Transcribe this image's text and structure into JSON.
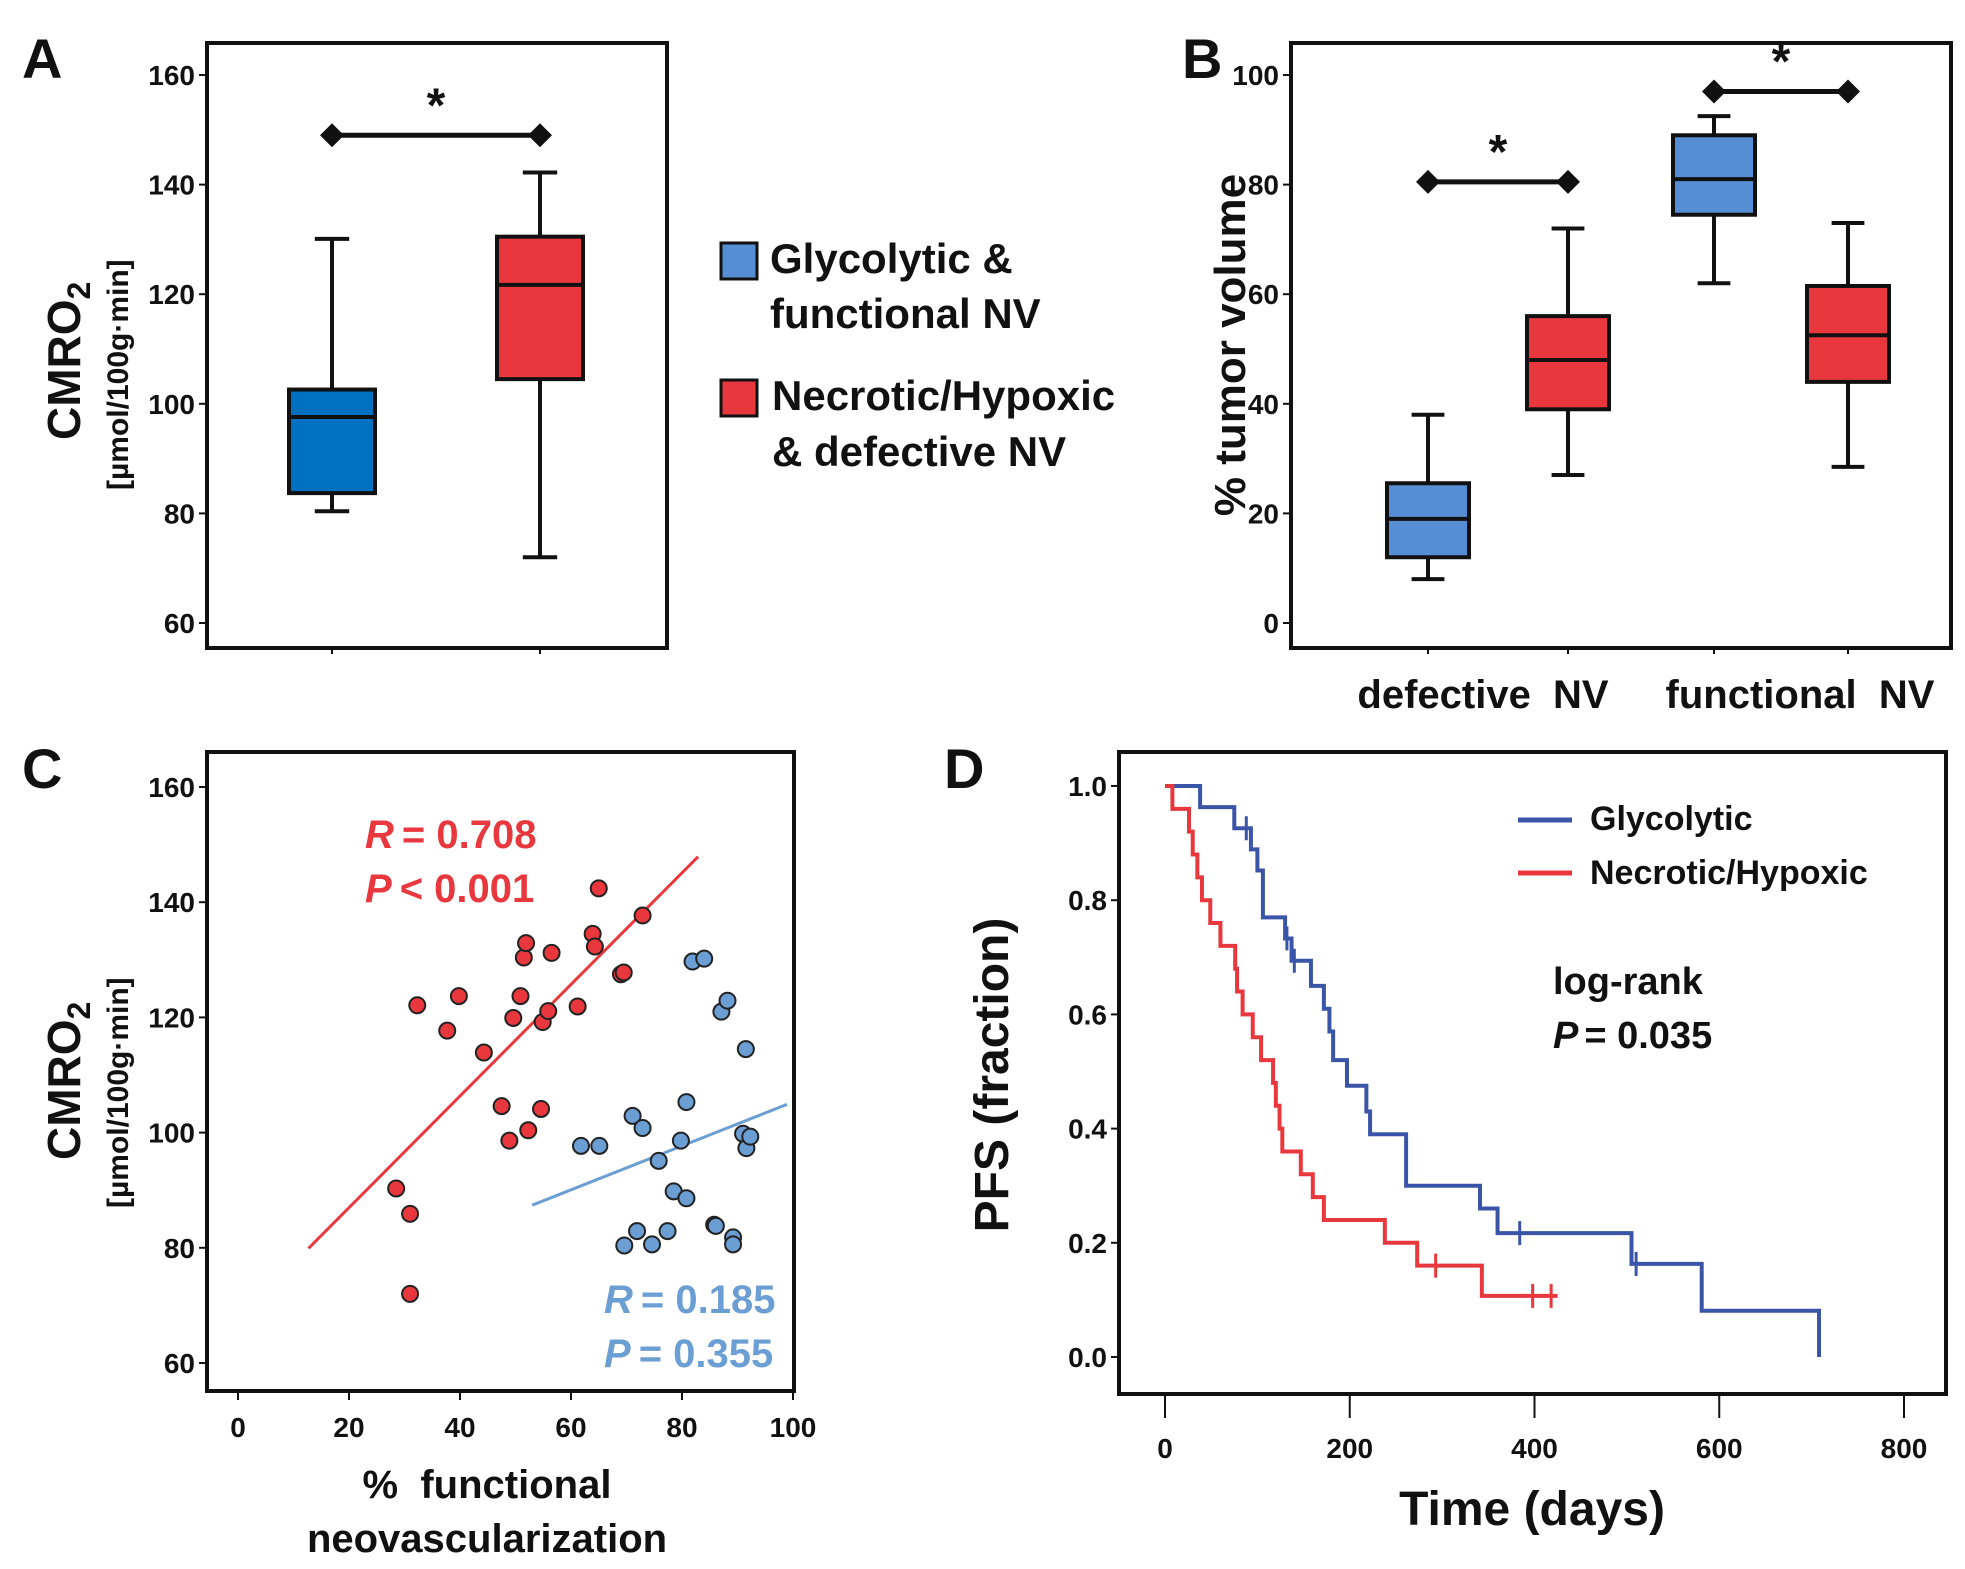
{
  "chart_data": [
    {
      "panel": "A",
      "type": "box",
      "ylabel": "CMRO2",
      "ylabel_main": "CMRO",
      "ylabel_sub": "2",
      "ylabel_units": "[µmol/100g·min]",
      "ylim": [
        55,
        166
      ],
      "yticks": [
        60,
        80,
        100,
        120,
        140,
        160
      ],
      "categories": [
        "Glycolytic & functional NV",
        "Necrotic/Hypoxic & defective NV"
      ],
      "boxes": [
        {
          "group": "Glycolytic & functional NV",
          "color": "#0070C0",
          "min": 80.4,
          "q1": 83.7,
          "median": 97.6,
          "q3": 102.6,
          "max": 130.1
        },
        {
          "group": "Necrotic/Hypoxic & defective NV",
          "color": "#E8383D",
          "min": 72.0,
          "q1": 104.5,
          "median": 121.7,
          "q3": 130.5,
          "max": 142.2
        }
      ],
      "significance": [
        {
          "between": [
            0,
            1
          ],
          "y": 149,
          "label": "*"
        }
      ]
    },
    {
      "panel": "B",
      "type": "box",
      "ylabel": "% tumor volume",
      "ylim": [
        -5,
        106
      ],
      "yticks": [
        0,
        20,
        40,
        60,
        80,
        100
      ],
      "categories": [
        "defective  NV",
        "functional  NV"
      ],
      "boxes": [
        {
          "category": "defective  NV",
          "group": "Glycolytic & functional NV",
          "color": "#558ED5",
          "min": 8,
          "q1": 12,
          "median": 19,
          "q3": 25.5,
          "max": 38
        },
        {
          "category": "defective  NV",
          "group": "Necrotic/Hypoxic & defective NV",
          "color": "#E8383D",
          "min": 27,
          "q1": 39,
          "median": 48,
          "q3": 56,
          "max": 72
        },
        {
          "category": "functional  NV",
          "group": "Glycolytic & functional NV",
          "color": "#558ED5",
          "min": 62,
          "q1": 74.5,
          "median": 81,
          "q3": 89,
          "max": 92.5
        },
        {
          "category": "functional  NV",
          "group": "Necrotic/Hypoxic & defective NV",
          "color": "#E8383D",
          "min": 28.5,
          "q1": 44,
          "median": 52.5,
          "q3": 61.5,
          "max": 73
        }
      ],
      "significance": [
        {
          "between": [
            0,
            1
          ],
          "y": 80.5,
          "label": "*"
        },
        {
          "between": [
            2,
            3
          ],
          "y": 97,
          "label": "*"
        }
      ]
    },
    {
      "panel": "C",
      "type": "scatter",
      "xlabel_line1": "%  functional",
      "xlabel_line2": "neovascularization",
      "ylabel_main": "CMRO",
      "ylabel_sub": "2",
      "ylabel_units": "[µmol/100g·min]",
      "xlim": [
        -6,
        104
      ],
      "ylim": [
        54,
        166
      ],
      "xticks": [
        0,
        20,
        40,
        60,
        80,
        100
      ],
      "yticks": [
        60,
        80,
        100,
        120,
        140,
        160
      ],
      "series": [
        {
          "name": "Necrotic/Hypoxic",
          "color": "#E8383D",
          "stat_r": "= 0.708",
          "stat_p": "< 0.001",
          "fit": {
            "x0": 12.7,
            "y0": 79.9,
            "x1": 82.9,
            "y1": 147.9
          },
          "points": [
            [
              28.5,
              90.3
            ],
            [
              31,
              85.9
            ],
            [
              31,
              72
            ],
            [
              32.3,
              122.1
            ],
            [
              37.7,
              117.7
            ],
            [
              39.8,
              123.7
            ],
            [
              44.3,
              113.9
            ],
            [
              47.5,
              104.6
            ],
            [
              48.9,
              98.6
            ],
            [
              49.6,
              119.9
            ],
            [
              50.9,
              123.7
            ],
            [
              51.5,
              130.4
            ],
            [
              51.9,
              132.9
            ],
            [
              52.3,
              100.4
            ],
            [
              54.6,
              104.1
            ],
            [
              54.9,
              119.2
            ],
            [
              55.9,
              121.1
            ],
            [
              56.5,
              131.2
            ],
            [
              61.2,
              121.9
            ],
            [
              63.9,
              134.5
            ],
            [
              64.3,
              132.3
            ],
            [
              65,
              142.4
            ],
            [
              69,
              127.5
            ],
            [
              69.5,
              127.8
            ],
            [
              72.9,
              137.7
            ]
          ]
        },
        {
          "name": "Glycolytic",
          "color": "#6B9FD4",
          "stat_r": "= 0.185",
          "stat_p": "= 0.355",
          "fit": {
            "x0": 53,
            "y0": 87.4,
            "x1": 98.9,
            "y1": 104.9
          },
          "points": [
            [
              61.8,
              97.7
            ],
            [
              65.1,
              97.7
            ],
            [
              69.6,
              80.4
            ],
            [
              71.1,
              102.9
            ],
            [
              71.9,
              82.9
            ],
            [
              72.9,
              100.8
            ],
            [
              74.6,
              80.6
            ],
            [
              75.8,
              95.1
            ],
            [
              77.4,
              82.9
            ],
            [
              78.5,
              89.8
            ],
            [
              79.8,
              98.6
            ],
            [
              80.8,
              105.3
            ],
            [
              80.8,
              88.6
            ],
            [
              81.9,
              129.7
            ],
            [
              84,
              130.2
            ],
            [
              85.8,
              84
            ],
            [
              86.1,
              83.8
            ],
            [
              87.1,
              121
            ],
            [
              88.2,
              122.9
            ],
            [
              89.2,
              81.8
            ],
            [
              89.2,
              80.6
            ],
            [
              91,
              99.8
            ],
            [
              91.5,
              114.5
            ],
            [
              91.6,
              97.3
            ],
            [
              92.3,
              99.3
            ]
          ]
        }
      ]
    },
    {
      "panel": "D",
      "type": "line",
      "subtype": "kaplan-meier",
      "xlabel": "Time (days)",
      "ylabel": "PFS (fraction)",
      "xlim": [
        -22,
        830
      ],
      "ylim": [
        -0.06,
        1.06
      ],
      "xticks": [
        0,
        200,
        400,
        600,
        800
      ],
      "yticks": [
        "0.0",
        "0.2",
        "0.4",
        "0.6",
        "0.8",
        "1.0"
      ],
      "legend_position": "top-right",
      "annotation_line1": "log-rank",
      "annotation_p": "= 0.035",
      "series": [
        {
          "name": "Glycolytic",
          "color": "#3A55A8",
          "steps": [
            [
              0,
              1.0
            ],
            [
              38,
              0.963
            ],
            [
              75,
              0.926
            ],
            [
              93,
              0.889
            ],
            [
              100,
              0.852
            ],
            [
              106,
              0.77
            ],
            [
              130,
              0.733
            ],
            [
              137,
              0.694
            ],
            [
              158,
              0.65
            ],
            [
              172,
              0.61
            ],
            [
              178,
              0.57
            ],
            [
              182,
              0.52
            ],
            [
              197,
              0.475
            ],
            [
              218,
              0.43
            ],
            [
              222,
              0.39
            ],
            [
              261,
              0.3
            ],
            [
              341,
              0.26
            ],
            [
              360,
              0.217
            ],
            [
              505,
              0.163
            ],
            [
              581,
              0.081
            ],
            [
              708,
              0.0
            ]
          ],
          "end": 708,
          "censored": [
            [
              88,
              0.926
            ],
            [
              132,
              0.733
            ],
            [
              140,
              0.694
            ],
            [
              384,
              0.217
            ],
            [
              510,
              0.163
            ]
          ]
        },
        {
          "name": "Necrotic/Hypoxic",
          "color": "#E8383D",
          "steps": [
            [
              0,
              1.0
            ],
            [
              8,
              0.96
            ],
            [
              26,
              0.92
            ],
            [
              30,
              0.88
            ],
            [
              35,
              0.84
            ],
            [
              40,
              0.8
            ],
            [
              49,
              0.76
            ],
            [
              60,
              0.72
            ],
            [
              76,
              0.68
            ],
            [
              78,
              0.64
            ],
            [
              84,
              0.6
            ],
            [
              95,
              0.56
            ],
            [
              104,
              0.52
            ],
            [
              117,
              0.48
            ],
            [
              120,
              0.44
            ],
            [
              124,
              0.4
            ],
            [
              127,
              0.36
            ],
            [
              147,
              0.32
            ],
            [
              160,
              0.28
            ],
            [
              172,
              0.24
            ],
            [
              238,
              0.2
            ],
            [
              273,
              0.16
            ],
            [
              343,
              0.107
            ]
          ],
          "end": 425,
          "censored": [
            [
              293,
              0.16
            ],
            [
              398,
              0.107
            ],
            [
              418,
              0.107
            ]
          ]
        }
      ]
    }
  ],
  "legend": {
    "items": [
      {
        "line1": "Glycolytic &",
        "line2": "functional NV",
        "color": "#558ED5"
      },
      {
        "line1": "Necrotic/Hypoxic",
        "line2": "& defective NV",
        "color": "#E8383D"
      }
    ]
  },
  "panels": {
    "a": "A",
    "b": "B",
    "c": "C",
    "d": "D"
  },
  "stat_symbols": {
    "r": "R",
    "p": "P"
  }
}
